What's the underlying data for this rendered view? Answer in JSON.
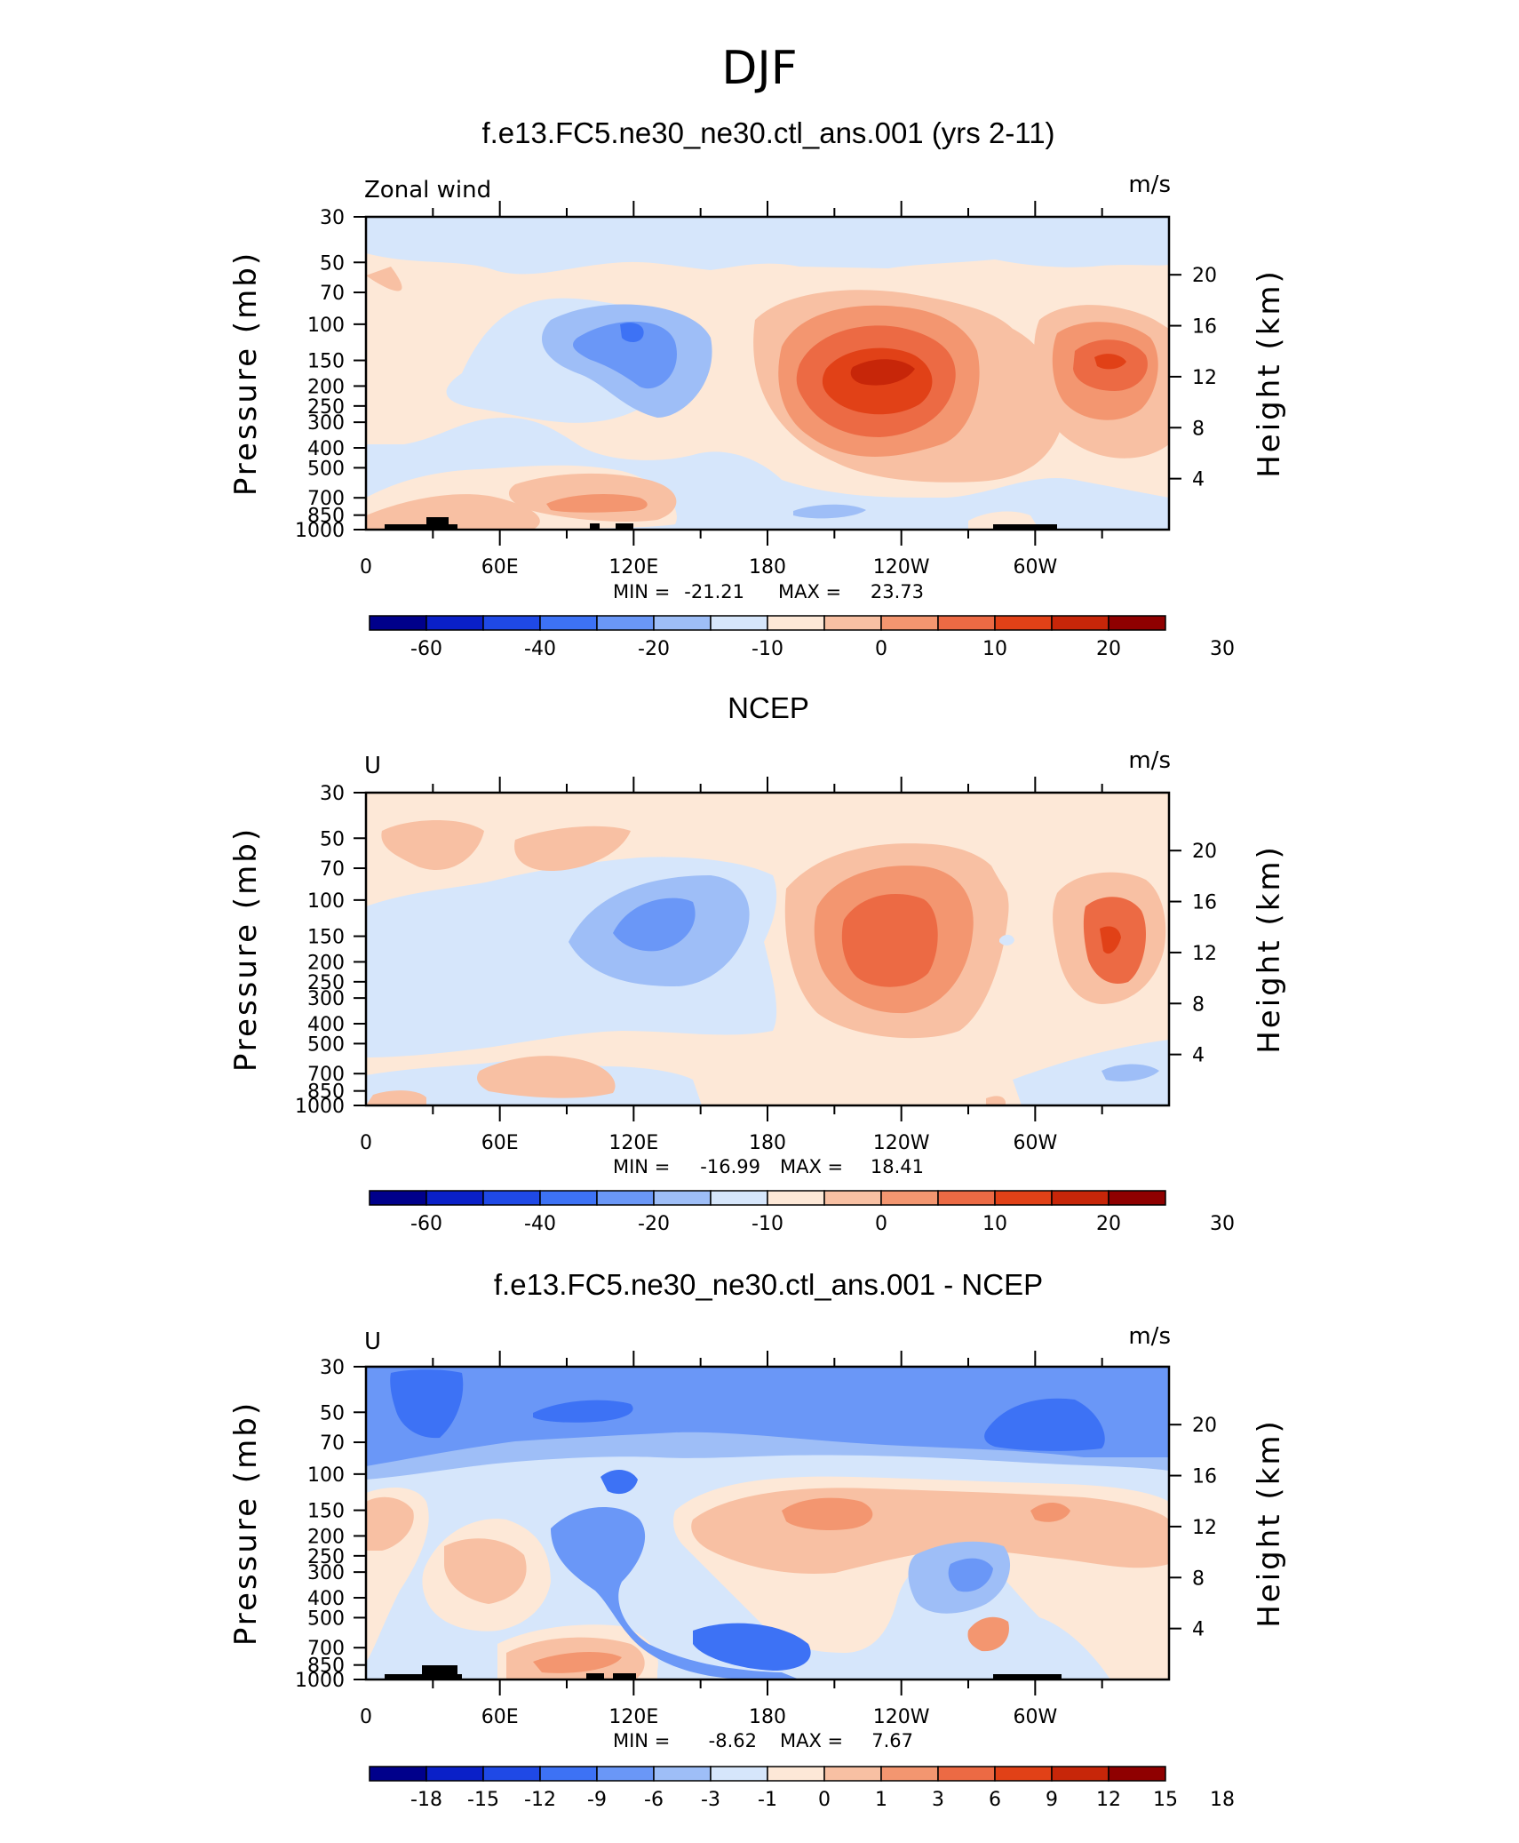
{
  "figure": {
    "title": "DJF",
    "colors": {
      "model_contour_levels": [
        "#00008b",
        "#0a20c8",
        "#1f49e6",
        "#3d72f5",
        "#6a97f7",
        "#9ebef7",
        "#d6e6fb",
        "#fde8d7",
        "#f8c0a3",
        "#f39670",
        "#ec6a44",
        "#e14117",
        "#c72609",
        "#8f0000"
      ],
      "diff_contour_levels": [
        "#00008b",
        "#0a20c8",
        "#1f49e6",
        "#3d72f5",
        "#6a97f7",
        "#9ebef7",
        "#d6e6fb",
        "#fde8d7",
        "#f8c0a3",
        "#f39670",
        "#ec6a44",
        "#e14117",
        "#c72609",
        "#8f0000"
      ],
      "topography": "#000000"
    }
  },
  "chart_data": [
    {
      "type": "heatmap",
      "id": "model",
      "title": "f.e13.FC5.ne30_ne30.ctl_ans.001 (yrs 2-11)",
      "left_label": "Zonal wind",
      "right_label": "m/s",
      "xlabel": "",
      "ylabel": "Pressure (mb)",
      "ylabel_right": "Height (km)",
      "x_ticks": [
        "0",
        "60E",
        "120E",
        "180",
        "120W",
        "60W"
      ],
      "xlim": [
        0,
        360
      ],
      "y_ticks": [
        "30",
        "50",
        "70",
        "100",
        "150",
        "200",
        "250",
        "300",
        "400",
        "500",
        "700",
        "850",
        "1000"
      ],
      "ylim": [
        1000,
        30
      ],
      "height_ticks": [
        "20",
        "16",
        "12",
        "8",
        "4"
      ],
      "min_label": "MIN =",
      "min": "-21.21",
      "max_label": "MAX =",
      "max": "23.73",
      "colorbar_labels": [
        "-60",
        "-40",
        "-20",
        "-10",
        "0",
        "10",
        "20",
        "30"
      ],
      "features": [
        {
          "lon": 125,
          "p": 130,
          "value": -21,
          "kind": "easterly"
        },
        {
          "lon": 225,
          "p": 170,
          "value": 23.7,
          "kind": "westerly"
        },
        {
          "lon": 330,
          "p": 160,
          "value": 20,
          "kind": "westerly"
        },
        {
          "lon": 100,
          "p": 720,
          "value": 6,
          "kind": "westerly"
        }
      ]
    },
    {
      "type": "heatmap",
      "id": "obs",
      "title": "NCEP",
      "left_label": "U",
      "right_label": "m/s",
      "xlabel": "",
      "ylabel": "Pressure (mb)",
      "ylabel_right": "Height (km)",
      "x_ticks": [
        "0",
        "60E",
        "120E",
        "180",
        "120W",
        "60W"
      ],
      "xlim": [
        0,
        360
      ],
      "y_ticks": [
        "30",
        "50",
        "70",
        "100",
        "150",
        "200",
        "250",
        "300",
        "400",
        "500",
        "700",
        "850",
        "1000"
      ],
      "ylim": [
        1000,
        30
      ],
      "height_ticks": [
        "20",
        "16",
        "12",
        "8",
        "4"
      ],
      "min_label": "MIN =",
      "min": "-16.99",
      "max_label": "MAX =",
      "max": "18.41",
      "colorbar_labels": [
        "-60",
        "-40",
        "-20",
        "-10",
        "0",
        "10",
        "20",
        "30"
      ],
      "features": [
        {
          "lon": 125,
          "p": 140,
          "value": -17,
          "kind": "easterly"
        },
        {
          "lon": 240,
          "p": 190,
          "value": 18.4,
          "kind": "westerly"
        },
        {
          "lon": 335,
          "p": 170,
          "value": 15,
          "kind": "westerly"
        }
      ]
    },
    {
      "type": "heatmap",
      "id": "diff",
      "title": "f.e13.FC5.ne30_ne30.ctl_ans.001 - NCEP",
      "left_label": "U",
      "right_label": "m/s",
      "xlabel": "",
      "ylabel": "Pressure (mb)",
      "ylabel_right": "Height (km)",
      "x_ticks": [
        "0",
        "60E",
        "120E",
        "180",
        "120W",
        "60W"
      ],
      "xlim": [
        0,
        360
      ],
      "y_ticks": [
        "30",
        "50",
        "70",
        "100",
        "150",
        "200",
        "250",
        "300",
        "400",
        "500",
        "700",
        "850",
        "1000"
      ],
      "ylim": [
        1000,
        30
      ],
      "height_ticks": [
        "20",
        "16",
        "12",
        "8",
        "4"
      ],
      "min_label": "MIN =",
      "min": "-8.62",
      "max_label": "MAX =",
      "max": "7.67",
      "colorbar_labels": [
        "-18",
        "-15",
        "-12",
        "-9",
        "-6",
        "-3",
        "-1",
        "0",
        "1",
        "3",
        "6",
        "9",
        "12",
        "15",
        "18"
      ],
      "features": [
        {
          "lon": 160,
          "p": 600,
          "value": -8.6,
          "kind": "negative"
        },
        {
          "lon": 195,
          "p": 140,
          "value": 7.7,
          "kind": "positive"
        },
        {
          "lon": 310,
          "p": 50,
          "value": -8,
          "kind": "negative"
        }
      ]
    }
  ]
}
